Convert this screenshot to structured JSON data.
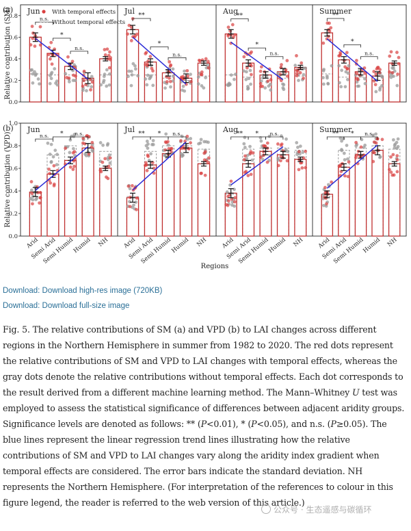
{
  "figure": {
    "legend": {
      "with": "With temporal effects",
      "without": "Without temporal effects"
    },
    "x_axis_title": "Regions",
    "colors": {
      "red": "#d94040",
      "gray": "#9a9a9a",
      "trend": "#2b2bd6",
      "bar_red": "#c03030",
      "bar_gray": "#999999"
    }
  },
  "chart_data": [
    {
      "type": "bar",
      "panel": "(a)",
      "ylabel": "Relative contribution (SM)",
      "ylim": [
        0,
        0.9
      ],
      "yticks": [
        0.0,
        0.2,
        0.4,
        0.6,
        0.8
      ],
      "categories": [
        "Arid",
        "Semi Arid",
        "Semi Humid",
        "Humid",
        "NH"
      ],
      "subplots": [
        {
          "title": "Jun",
          "with": [
            0.6,
            0.45,
            0.33,
            0.22,
            0.4
          ],
          "with_sd": [
            0.04,
            0.03,
            0.03,
            0.05,
            0.02
          ],
          "without": [
            0.26,
            0.25,
            0.25,
            0.2,
            0.25
          ],
          "sig": [
            "n.s.",
            "*",
            "n.s."
          ]
        },
        {
          "title": "Jul",
          "with": [
            0.67,
            0.37,
            0.27,
            0.22,
            0.36
          ],
          "with_sd": [
            0.04,
            0.03,
            0.03,
            0.04,
            0.02
          ],
          "without": [
            0.25,
            0.25,
            0.22,
            0.2,
            0.24
          ],
          "sig": [
            "**",
            "*",
            "n.s."
          ]
        },
        {
          "title": "Aug",
          "with": [
            0.63,
            0.36,
            0.25,
            0.28,
            0.32
          ],
          "with_sd": [
            0.04,
            0.03,
            0.03,
            0.03,
            0.02
          ],
          "without": [
            0.25,
            0.23,
            0.22,
            0.22,
            0.24
          ],
          "sig": [
            "**",
            "*",
            "n.s."
          ]
        },
        {
          "title": "Summer",
          "with": [
            0.64,
            0.39,
            0.28,
            0.24,
            0.36
          ],
          "with_sd": [
            0.03,
            0.03,
            0.03,
            0.04,
            0.02
          ],
          "without": [
            0.26,
            0.23,
            0.23,
            0.2,
            0.24
          ],
          "sig": [
            "**",
            "*",
            "n.s."
          ]
        }
      ]
    },
    {
      "type": "bar",
      "panel": "(b)",
      "ylabel": "Relative contribution (VPD)",
      "ylim": [
        0,
        1.0
      ],
      "yticks": [
        0.0,
        0.2,
        0.4,
        0.6,
        0.8,
        1.0
      ],
      "categories": [
        "Arid",
        "Semi Arid",
        "Semi Humid",
        "Humid",
        "NH"
      ],
      "subplots": [
        {
          "title": "Jun",
          "with": [
            0.39,
            0.55,
            0.67,
            0.78,
            0.6
          ],
          "with_sd": [
            0.04,
            0.03,
            0.03,
            0.04,
            0.02
          ],
          "without": [
            0.38,
            0.72,
            0.8,
            0.82,
            0.75
          ],
          "sig": [
            "n.s.",
            "*",
            "n.s."
          ]
        },
        {
          "title": "Jul",
          "with": [
            0.34,
            0.63,
            0.73,
            0.78,
            0.64
          ],
          "with_sd": [
            0.04,
            0.03,
            0.03,
            0.04,
            0.02
          ],
          "without": [
            0.35,
            0.75,
            0.8,
            0.8,
            0.77
          ],
          "sig": [
            "**",
            "*",
            "n.s."
          ]
        },
        {
          "title": "Aug",
          "with": [
            0.38,
            0.64,
            0.75,
            0.72,
            0.68
          ],
          "with_sd": [
            0.04,
            0.03,
            0.03,
            0.03,
            0.02
          ],
          "without": [
            0.37,
            0.77,
            0.78,
            0.78,
            0.76
          ],
          "sig": [
            "**",
            "*",
            "n.s."
          ]
        },
        {
          "title": "Summer",
          "with": [
            0.37,
            0.61,
            0.72,
            0.76,
            0.64
          ],
          "with_sd": [
            0.03,
            0.03,
            0.03,
            0.04,
            0.02
          ],
          "without": [
            0.35,
            0.76,
            0.78,
            0.8,
            0.77
          ],
          "sig": [
            "**",
            "*",
            "n.s."
          ]
        }
      ]
    }
  ],
  "links": {
    "high_res": "Download: Download high-res image (720KB)",
    "full_size": "Download: Download full-size image"
  },
  "caption": {
    "p1": "Fig. 5. The relative contributions of SM (a) and VPD (b) to LAI changes across different regions in the Northern Hemisphere in summer from 1982 to 2020. The red dots represent the relative contributions of SM and VPD to LAI changes with temporal effects, whereas the gray dots denote the relative contributions without temporal effects. Each dot corresponds to the result derived from a different machine learning method. The Mann–Whitney ",
    "u": "U",
    "p2": " test was employed to assess the statistical significance of differences between adjacent aridity groups. Significance levels are denoted as follows: ** (",
    "p_a": "P",
    "p3": "<0.01), * (",
    "p_b": "P",
    "p4": "<0.05), and n.s. (",
    "p_c": "P",
    "p5": "≥0.05). The blue lines represent the linear regression trend lines illustrating how the relative contributions of SM and VPD to LAI changes vary along the aridity index gradient when temporal effects are considered. The error bars indicate the standard deviation. NH represents the Northern Hemisphere. (For interpretation of the references to colour in this figure legend, the reader is referred to the web version of this article.)"
  },
  "watermark": "公众号 · 生态遥感与碳循环"
}
